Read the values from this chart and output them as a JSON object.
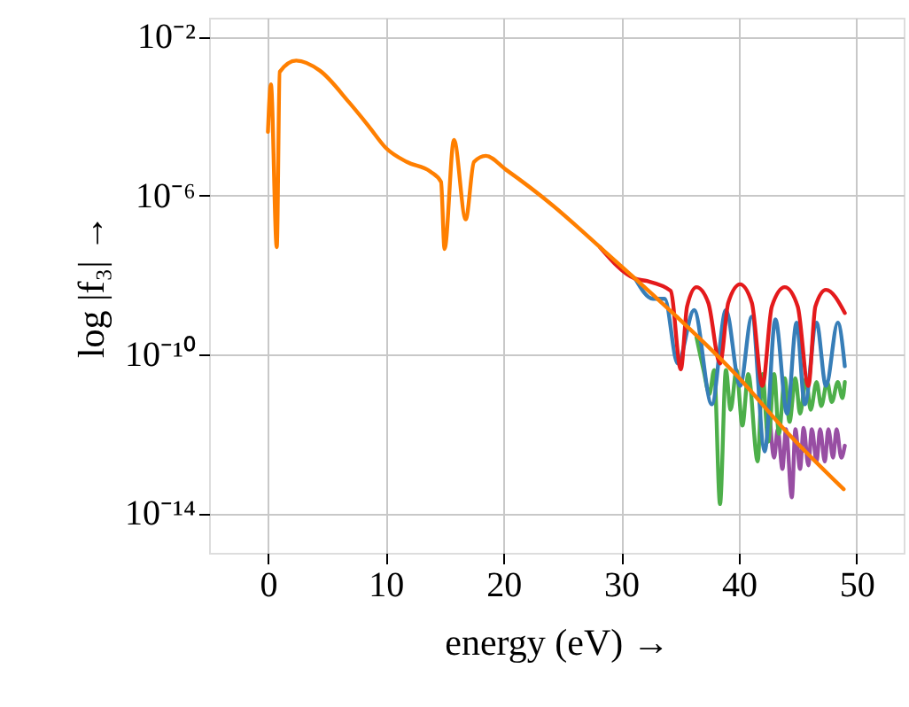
{
  "chart_data": {
    "type": "line",
    "xlabel": "energy (eV) →",
    "ylabel": "log |f₃| →",
    "log": "y",
    "grid": true,
    "marker": "none",
    "line_style": "solid",
    "xlim": [
      -5,
      54
    ],
    "xticks": [
      0,
      10,
      20,
      30,
      40,
      50
    ],
    "ylim": [
      1e-15,
      0.03
    ],
    "yticks": [
      {
        "value": 0.01,
        "label": "10⁻²"
      },
      {
        "value": 1e-06,
        "label": "10⁻⁶"
      },
      {
        "value": 1e-10,
        "label": "10⁻¹⁰"
      },
      {
        "value": 1e-14,
        "label": "10⁻¹⁴"
      }
    ],
    "series": [
      {
        "color": "#984ea3",
        "x": [
          42.6,
          43.0,
          43.3,
          43.7,
          44.0,
          44.5,
          44.8,
          45.2,
          45.5,
          45.9,
          46.2,
          46.6,
          46.9,
          47.3,
          47.6,
          48.0,
          48.3,
          48.7,
          49.0
        ],
        "values": [
          4e-12,
          2.5e-13,
          1.3e-12,
          1.3e-13,
          1.3e-12,
          2.5e-14,
          1.3e-12,
          1.3e-13,
          1.4e-12,
          1.6e-13,
          1.3e-12,
          2e-13,
          1.3e-12,
          2e-13,
          1.3e-12,
          2.5e-13,
          1.3e-12,
          2.5e-13,
          5e-13
        ]
      },
      {
        "color": "#4daf4a",
        "x": [
          36.4,
          37.0,
          37.5,
          37.9,
          38.4,
          38.9,
          39.3,
          39.8,
          40.3,
          40.8,
          41.6,
          42.0,
          42.5,
          43.0,
          43.4,
          43.9,
          44.3,
          44.8,
          45.2,
          45.7,
          46.1,
          46.6,
          47.0,
          47.5,
          47.9,
          48.4,
          48.8,
          49.0
        ],
        "values": [
          2.7e-10,
          4e-11,
          1e-11,
          4e-11,
          1.7e-14,
          4e-11,
          4e-12,
          4e-11,
          1.6e-12,
          3.2e-11,
          2e-13,
          3.2e-11,
          6.3e-13,
          3.2e-11,
          1e-12,
          2.5e-11,
          2e-12,
          2.5e-11,
          3.2e-12,
          2.5e-11,
          4e-12,
          2e-11,
          5e-12,
          2e-11,
          6.3e-12,
          2e-11,
          7.9e-12,
          2e-11
        ]
      },
      {
        "color": "#377eb8",
        "x": [
          31.2,
          32.7,
          33.7,
          34.8,
          36.2,
          37.7,
          38.9,
          40.1,
          41.1,
          42.2,
          43.1,
          44.1,
          44.9,
          45.6,
          46.6,
          47.4,
          48.4,
          49.0
        ],
        "values": [
          8e-09,
          2.5e-09,
          2.5e-09,
          5.9e-11,
          1.3e-09,
          5.5e-12,
          1.3e-09,
          1.6e-11,
          8.9e-10,
          3.6e-13,
          7.6e-10,
          3.2e-12,
          6.3e-10,
          5.5e-12,
          6.3e-10,
          1.6e-11,
          6.3e-10,
          5e-11
        ]
      },
      {
        "color": "#e41a1c",
        "x": [
          28.2,
          31.2,
          32.2,
          34.2,
          35.07,
          35.6,
          36.4,
          37.4,
          38.4,
          39.1,
          40.1,
          41.1,
          42.0,
          42.8,
          43.9,
          45.0,
          45.9,
          46.5,
          47.4,
          49.0
        ],
        "values": [
          5e-08,
          8e-09,
          7e-09,
          4e-09,
          4.2e-11,
          1.6e-09,
          4.9e-09,
          2e-09,
          5.9e-11,
          2e-09,
          5.8e-09,
          2e-09,
          1.6e-11,
          1.6e-09,
          4.9e-09,
          1.6e-09,
          1.6e-11,
          1.6e-09,
          4.2e-09,
          1.1e-09
        ]
      },
      {
        "color": "#ff7f00",
        "x": [
          0,
          0.25,
          0.75,
          1.0,
          2.4,
          4.4,
          6.9,
          8.55,
          10,
          11.8,
          13.8,
          14.7,
          15.0,
          15.8,
          16.8,
          17.5,
          18.5,
          20.2,
          24.2,
          28.2,
          31.2,
          34.7,
          39.7,
          44.2,
          48.9
        ],
        "values": [
          4e-05,
          0.00063,
          5e-08,
          0.0013,
          0.0025,
          0.0014,
          0.00022,
          5.6e-05,
          1.6e-05,
          7e-06,
          4e-06,
          2.2e-06,
          4.5e-08,
          2.5e-05,
          2.5e-07,
          7e-06,
          1e-05,
          4.5e-06,
          5.6e-07,
          5e-08,
          8e-09,
          9e-10,
          3.2e-11,
          1e-12,
          4e-14
        ]
      }
    ]
  }
}
